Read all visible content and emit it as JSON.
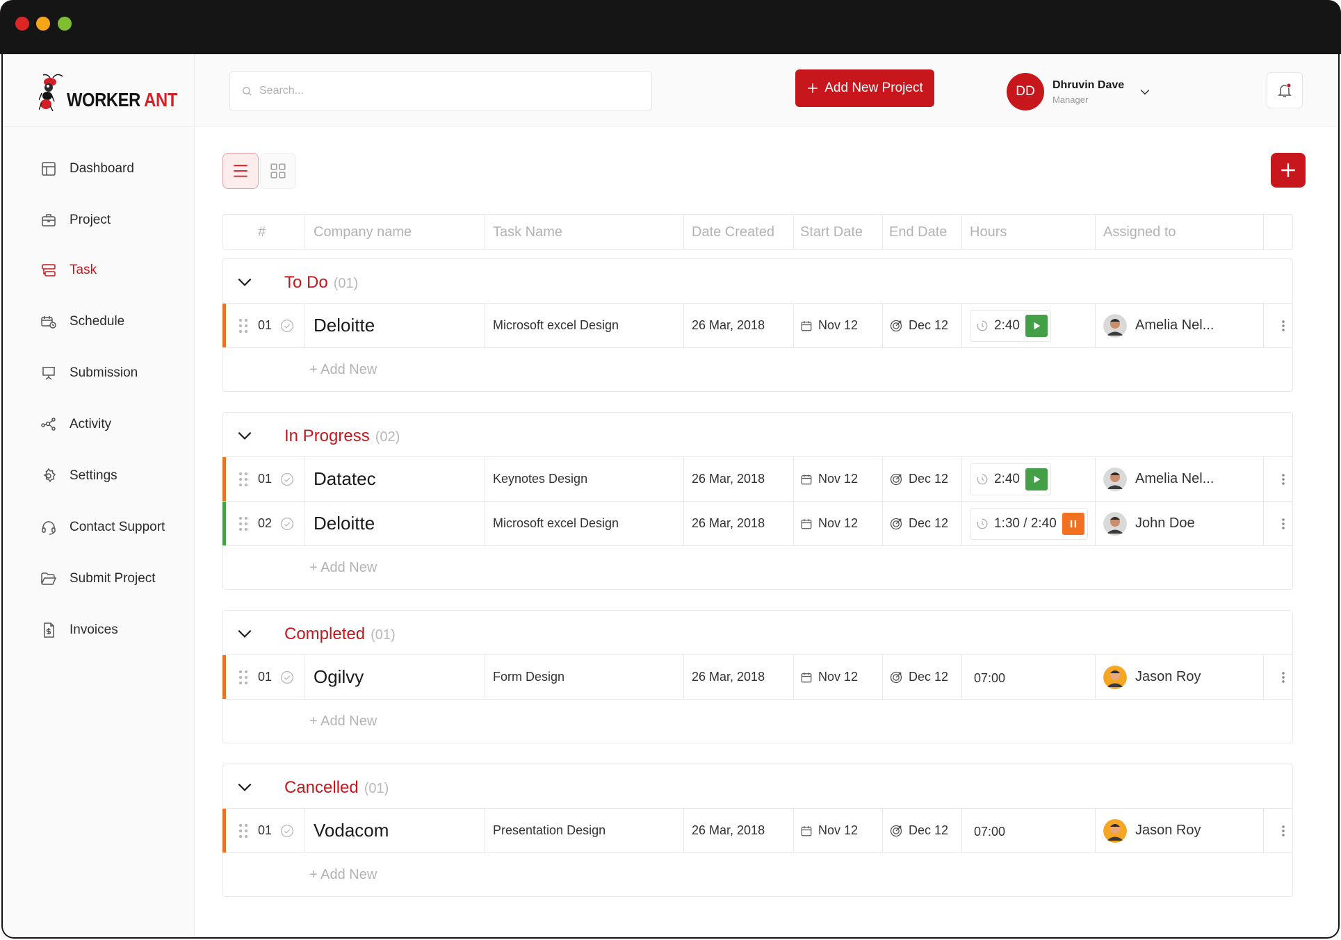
{
  "app": {
    "logo_worker": "WORKER",
    "logo_ant": "ANT",
    "brand_color": "#c8161d"
  },
  "sidebar": {
    "items": [
      {
        "label": "Dashboard",
        "icon": "dashboard-icon"
      },
      {
        "label": "Project",
        "icon": "briefcase-icon"
      },
      {
        "label": "Task",
        "icon": "task-icon",
        "active": true
      },
      {
        "label": "Schedule",
        "icon": "schedule-icon"
      },
      {
        "label": "Submission",
        "icon": "presentation-icon"
      },
      {
        "label": "Activity",
        "icon": "activity-icon"
      },
      {
        "label": "Settings",
        "icon": "gear-icon"
      },
      {
        "label": "Contact Support",
        "icon": "headset-icon"
      },
      {
        "label": "Submit Project",
        "icon": "folder-icon"
      },
      {
        "label": "Invoices",
        "icon": "invoice-icon"
      }
    ]
  },
  "header": {
    "search_placeholder": "Search...",
    "add_project_label": "Add New Project",
    "user": {
      "initials": "DD",
      "name": "Dhruvin Dave",
      "role": "Manager"
    }
  },
  "table": {
    "columns": [
      "#",
      "Company name",
      "Task Name",
      "Date Created",
      "Start Date",
      "End Date",
      "Hours",
      "Assigned to"
    ],
    "add_new_label": "+ Add New",
    "groups": [
      {
        "title": "To Do",
        "count": "(01)",
        "rows": [
          {
            "idx": "01",
            "company": "Deloitte",
            "task": "Microsoft excel Design",
            "created": "26 Mar, 2018",
            "start": "Nov 12",
            "end": "Dec 12",
            "hours": "2:40",
            "hours_type": "play",
            "assignee": "Amelia Nel...",
            "accent": "#f37021"
          }
        ]
      },
      {
        "title": "In Progress",
        "count": "(02)",
        "rows": [
          {
            "idx": "01",
            "company": "Datatec",
            "task": "Keynotes Design",
            "created": "26 Mar, 2018",
            "start": "Nov 12",
            "end": "Dec 12",
            "hours": "2:40",
            "hours_type": "play",
            "assignee": "Amelia Nel...",
            "accent": "#f37021"
          },
          {
            "idx": "02",
            "company": "Deloitte",
            "task": "Microsoft excel Design",
            "created": "26 Mar, 2018",
            "start": "Nov 12",
            "end": "Dec 12",
            "hours": "1:30 / 2:40",
            "hours_type": "pause",
            "assignee": "John Doe",
            "accent": "#43a047"
          }
        ]
      },
      {
        "title": "Completed",
        "count": "(01)",
        "rows": [
          {
            "idx": "01",
            "company": "Ogilvy",
            "task": "Form Design",
            "created": "26 Mar, 2018",
            "start": "Nov 12",
            "end": "Dec 12",
            "hours": "07:00",
            "hours_type": "plain",
            "assignee": "Jason Roy",
            "accent": "#f37021"
          }
        ]
      },
      {
        "title": "Cancelled",
        "count": "(01)",
        "rows": [
          {
            "idx": "01",
            "company": "Vodacom",
            "task": "Presentation Design",
            "created": "26 Mar, 2018",
            "start": "Nov 12",
            "end": "Dec 12",
            "hours": "07:00",
            "hours_type": "plain",
            "assignee": "Jason Roy",
            "accent": "#f37021"
          }
        ]
      }
    ]
  }
}
